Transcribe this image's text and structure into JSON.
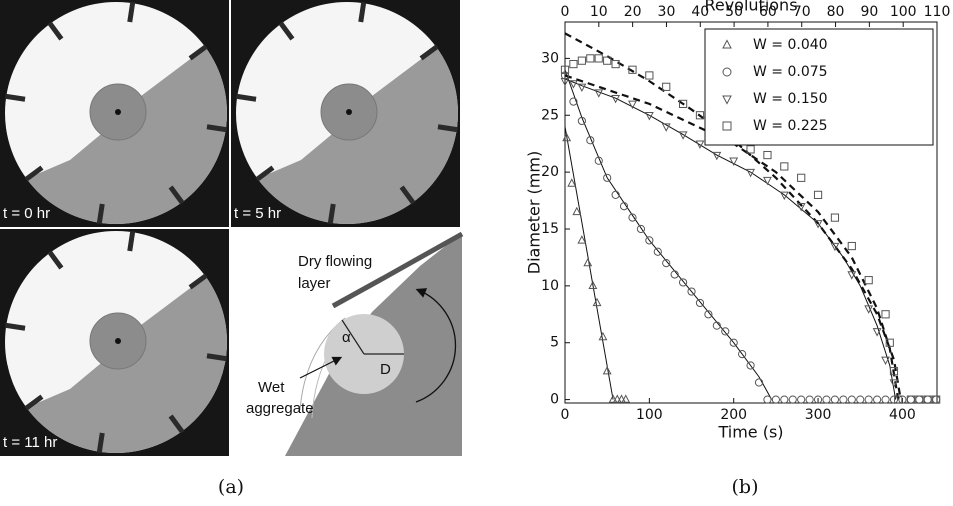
{
  "figure": {
    "panel_a": {
      "photos": [
        {
          "label": "t = 0 hr"
        },
        {
          "label": "t = 5 hr"
        },
        {
          "label": "t = 11 hr"
        }
      ],
      "diagram": {
        "layer_label": [
          "Dry flowing",
          "layer"
        ],
        "angle_label": "α",
        "diameter_label": "D",
        "aggregate_label": [
          "Wet",
          "aggregate"
        ]
      },
      "caption": "(a)"
    },
    "panel_b": {
      "caption": "(b)"
    }
  },
  "chart_data": {
    "type": "scatter",
    "xlabel": "Time (s)",
    "ylabel": "Diameter (mm)",
    "x2label": "Revolutions",
    "xlim": [
      0,
      441
    ],
    "xticks": [
      0,
      100,
      200,
      300,
      400
    ],
    "x2lim": [
      0,
      110
    ],
    "x2ticks": [
      0,
      10,
      20,
      30,
      40,
      50,
      60,
      70,
      80,
      90,
      100,
      110
    ],
    "ylim": [
      -0.3,
      33.2
    ],
    "yticks": [
      0,
      5,
      10,
      15,
      20,
      25,
      30
    ],
    "legend": "upper right",
    "series": [
      {
        "name": "W = 0.040",
        "marker": "triangle-up",
        "color": "#555555",
        "x": [
          2,
          8,
          14,
          20,
          27,
          33,
          38,
          45,
          50,
          57,
          62,
          67,
          72
        ],
        "y": [
          23,
          19,
          16.5,
          14,
          12,
          10,
          8.5,
          5.5,
          2.5,
          0,
          0,
          0,
          0
        ]
      },
      {
        "name": "W = 0.075",
        "marker": "circle",
        "color": "#555555",
        "x": [
          0,
          10,
          20,
          30,
          40,
          50,
          60,
          70,
          80,
          90,
          100,
          110,
          120,
          130,
          140,
          150,
          160,
          170,
          180,
          190,
          200,
          210,
          220,
          230,
          240,
          250,
          260,
          270,
          280,
          290,
          300,
          310,
          320,
          330,
          340,
          350,
          360,
          370,
          380,
          390,
          400,
          410,
          420,
          430,
          440
        ],
        "y": [
          28.5,
          26.2,
          24.5,
          22.8,
          21,
          19.5,
          18,
          17,
          16,
          15,
          14,
          13,
          12,
          11,
          10.3,
          9.5,
          8.5,
          7.5,
          6.5,
          6,
          5,
          4,
          3,
          1.5,
          0,
          0,
          0,
          0,
          0,
          0,
          0,
          0,
          0,
          0,
          0,
          0,
          0,
          0,
          0,
          0,
          0,
          0,
          0,
          0,
          0
        ]
      },
      {
        "name": "W = 0.150",
        "marker": "triangle-down",
        "color": "#555555",
        "x": [
          0,
          10,
          20,
          40,
          60,
          80,
          100,
          120,
          140,
          160,
          180,
          200,
          220,
          240,
          260,
          280,
          300,
          320,
          340,
          360,
          370,
          380,
          390
        ],
        "y": [
          28,
          27.8,
          27.5,
          27,
          26.5,
          26,
          25,
          24,
          23.3,
          22.5,
          21.5,
          21,
          20,
          19.3,
          18,
          17,
          15.5,
          13.5,
          11,
          8,
          6,
          3.5,
          1.5
        ]
      },
      {
        "name": "W = 0.225",
        "marker": "square",
        "color": "#555555",
        "x": [
          0,
          10,
          20,
          30,
          40,
          50,
          60,
          80,
          100,
          120,
          140,
          160,
          180,
          200,
          220,
          240,
          260,
          280,
          300,
          320,
          340,
          360,
          380,
          385,
          390,
          395,
          410,
          420,
          430,
          440
        ],
        "y": [
          29,
          29.5,
          29.8,
          30,
          30,
          29.8,
          29.5,
          29,
          28.5,
          27.5,
          26,
          25,
          24,
          23,
          22,
          21.5,
          20.5,
          19.5,
          18,
          16,
          13.5,
          10.5,
          7.5,
          5,
          2.5,
          0,
          0,
          0,
          0,
          0
        ]
      }
    ],
    "fits": [
      {
        "style": "solid",
        "x": [
          0,
          57
        ],
        "y": [
          24,
          0
        ]
      },
      {
        "style": "solid",
        "x": [
          0,
          20,
          50,
          100,
          150,
          200,
          230,
          245
        ],
        "y": [
          29,
          24.8,
          19.5,
          14,
          9.5,
          5,
          2,
          0
        ]
      },
      {
        "style": "solid",
        "x": [
          0,
          20,
          60,
          100,
          140,
          180,
          220,
          260,
          300,
          330,
          350,
          370,
          385,
          392
        ],
        "y": [
          28.2,
          27.6,
          26.5,
          25,
          23.3,
          21.5,
          20,
          18,
          15.5,
          12.5,
          10,
          6.5,
          3,
          0
        ]
      },
      {
        "style": "dashed",
        "x": [
          0,
          50,
          100,
          150,
          200,
          250,
          300,
          340,
          370,
          390,
          398
        ],
        "y": [
          32.2,
          30.2,
          28,
          25.5,
          22.8,
          19.5,
          15.5,
          11.5,
          7.5,
          3.5,
          0
        ]
      },
      {
        "style": "dashed",
        "x": [
          0,
          100,
          200,
          250,
          300,
          340,
          370,
          385,
          395
        ],
        "y": [
          28.5,
          26,
          22.5,
          20,
          16.5,
          12.5,
          8,
          4.5,
          0
        ]
      }
    ]
  }
}
